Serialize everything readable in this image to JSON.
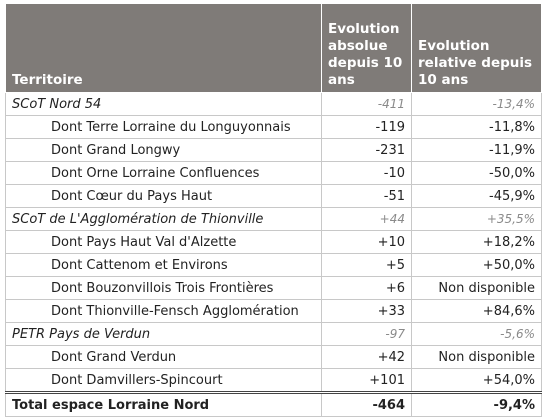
{
  "table": {
    "header": [
      "Territoire",
      "Evolution absolue depuis 10 ans",
      "Evolution relative depuis 10 ans"
    ],
    "rows": [
      [
        "SCoT Nord 54",
        "-411",
        "-13,4%"
      ],
      [
        "Dont Terre Lorraine du Longuyonnais",
        "-119",
        "-11,8%"
      ],
      [
        "Dont Grand Longwy",
        "-231",
        "-11,9%"
      ],
      [
        "Dont Orne Lorraine Confluences",
        "-10",
        "-50,0%"
      ],
      [
        "Dont Cœur du Pays Haut",
        "-51",
        "-45,9%"
      ],
      [
        "SCoT de L'Agglomération de Thionville",
        "+44",
        "+35,5%"
      ],
      [
        "Dont Pays Haut Val d'Alzette",
        "+10",
        "+18,2%"
      ],
      [
        "Dont Cattenom et Environs",
        "+5",
        "+50,0%"
      ],
      [
        "Dont Bouzonvillois Trois Frontières",
        "+6",
        "Non disponible"
      ],
      [
        "Dont Thionville-Fensch Agglomération",
        "+33",
        "+84,6%"
      ],
      [
        "PETR Pays de Verdun",
        "-97",
        "-5,6%"
      ],
      [
        "Dont Grand Verdun",
        "+42",
        "Non disponible"
      ],
      [
        "Dont Damvillers-Spincourt",
        "+101",
        "+54,0%"
      ],
      [
        "Total espace Lorraine Nord",
        "-464",
        "-9,4%"
      ]
    ]
  }
}
